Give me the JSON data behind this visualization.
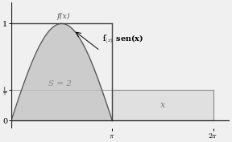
{
  "xlim": [
    0,
    6.8
  ],
  "ylim": [
    -0.08,
    1.22
  ],
  "pi": 3.14159265358979,
  "two_pi": 6.28318530717959,
  "one_over_pi": 0.31830988618,
  "fill_color": "#c0c0c0",
  "fill_alpha": 0.75,
  "rect_facecolor": "#e0e0e0",
  "rect_edgecolor": "#888888",
  "line_color": "#444444",
  "curve_color": "#555555",
  "axis_color": "#222222",
  "hline_color": "#888888",
  "label_S": "S = 2",
  "label_fx": "f(x)",
  "label_x": "x",
  "background_color": "#f0f0f0",
  "tick_fontsize": 7,
  "annotation_fontsize": 7
}
